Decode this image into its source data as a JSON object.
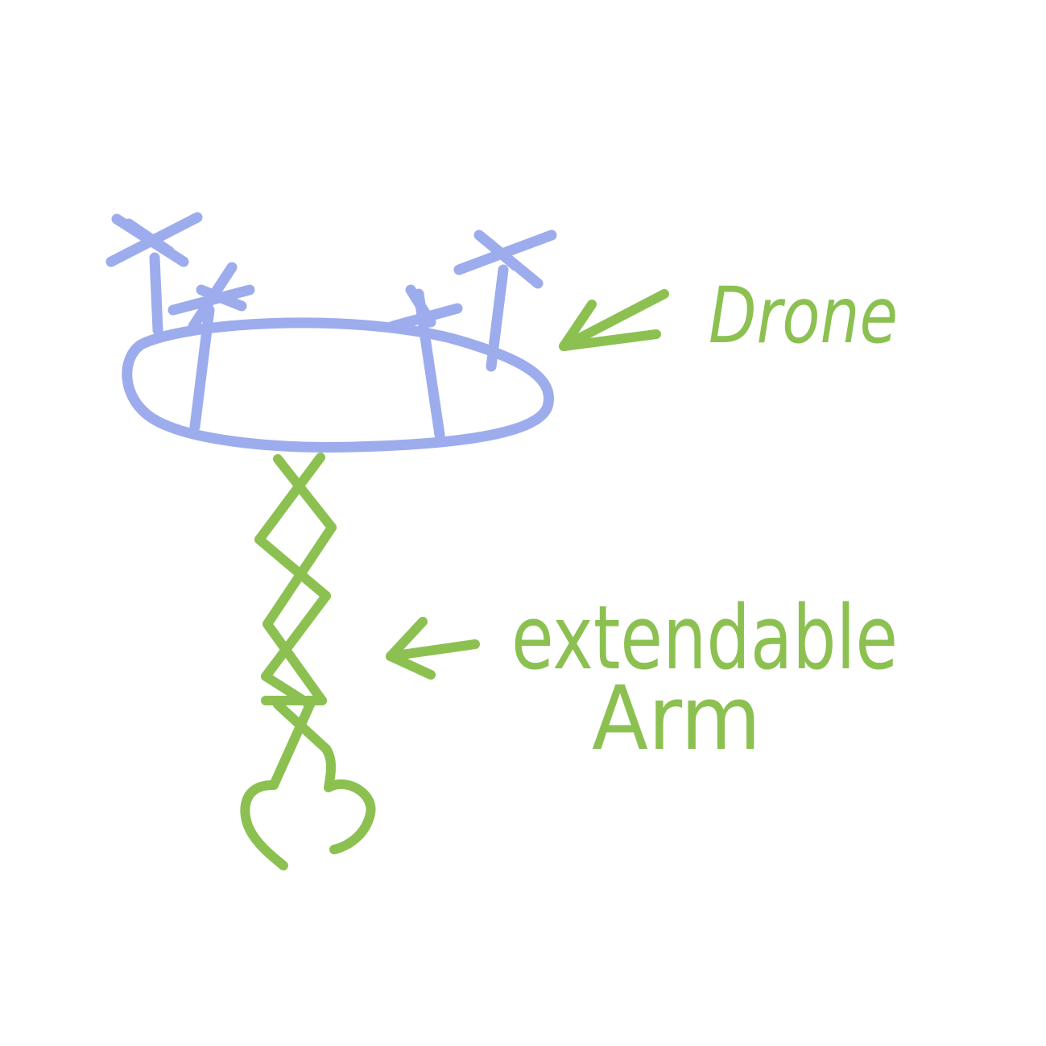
{
  "colors": {
    "drone": "#9dacec",
    "arm": "#8cc152",
    "background": "#ffffff"
  },
  "labels": {
    "drone": "Drone",
    "arm_line1": "extendable",
    "arm_line2": "Arm"
  }
}
